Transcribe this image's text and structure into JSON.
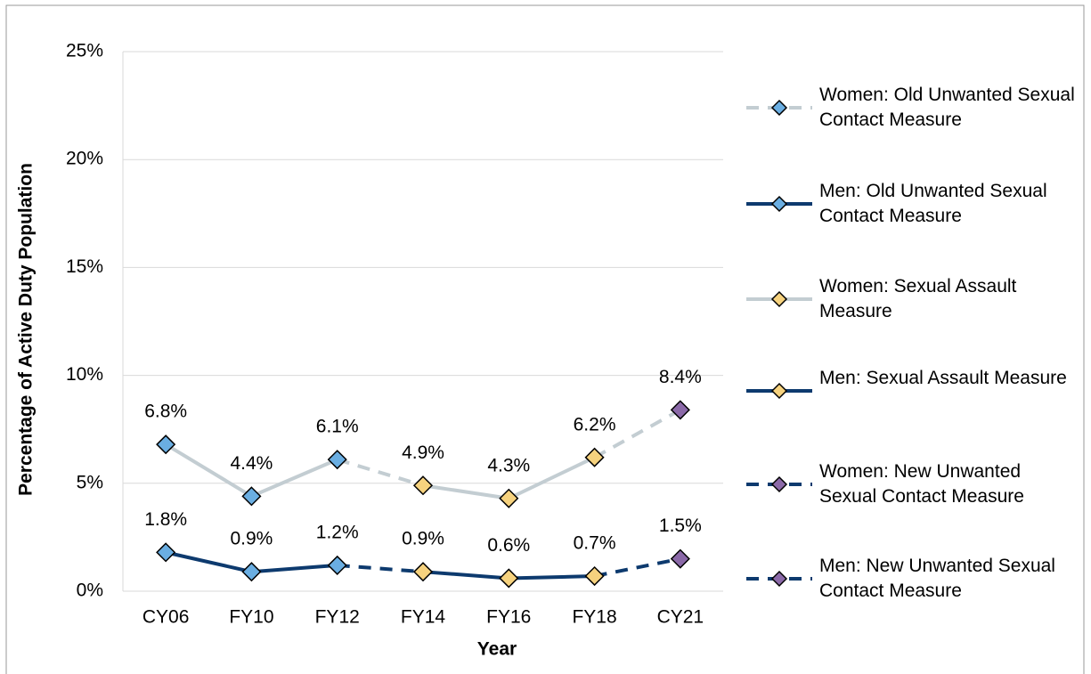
{
  "chart_data": {
    "type": "line",
    "x_label": "Year",
    "y_label": "Percentage of Active Duty Population",
    "categories": [
      "CY06",
      "FY10",
      "FY12",
      "FY14",
      "FY16",
      "FY18",
      "CY21"
    ],
    "ylim": [
      0,
      25
    ],
    "yticks": [
      {
        "value": 0,
        "label": "0%"
      },
      {
        "value": 5,
        "label": "5%"
      },
      {
        "value": 10,
        "label": "10%"
      },
      {
        "value": 15,
        "label": "15%"
      },
      {
        "value": 20,
        "label": "20%"
      },
      {
        "value": 25,
        "label": "25%"
      }
    ],
    "grid": true,
    "legend": "right",
    "series": [
      {
        "name": "Women: Old Unwanted Sexual Contact Measure",
        "color": "#c3cdd2",
        "marker_color": "#6aaee2",
        "line_style": "dashed",
        "values": [
          6.8,
          4.4,
          6.1,
          null,
          null,
          null,
          null
        ],
        "value_labels": [
          "6.8%",
          "4.4%",
          "6.1%",
          null,
          null,
          null,
          null
        ]
      },
      {
        "name": "Men: Old Unwanted Sexual Contact Measure",
        "color": "#0d3a6e",
        "marker_color": "#6aaee2",
        "line_style": "solid",
        "values": [
          1.8,
          0.9,
          1.2,
          null,
          null,
          null,
          null
        ],
        "value_labels": [
          "1.8%",
          "0.9%",
          "1.2%",
          null,
          null,
          null,
          null
        ]
      },
      {
        "name": "Women: Sexual Assault Measure",
        "color": "#c3cdd2",
        "marker_color": "#f6d27e",
        "line_style": "solid",
        "values": [
          null,
          null,
          null,
          4.9,
          4.3,
          6.2,
          null
        ],
        "value_labels": [
          null,
          null,
          null,
          "4.9%",
          "4.3%",
          "6.2%",
          null
        ]
      },
      {
        "name": "Men: Sexual Assault Measure",
        "color": "#0d3a6e",
        "marker_color": "#f6d27e",
        "line_style": "solid",
        "values": [
          null,
          null,
          null,
          0.9,
          0.6,
          0.7,
          null
        ],
        "value_labels": [
          null,
          null,
          null,
          "0.9%",
          "0.6%",
          "0.7%",
          null
        ]
      },
      {
        "name": "Women: New Unwanted Sexual Contact Measure",
        "color": "#0d3a6e",
        "marker_color": "#8b69a8",
        "line_style": "dashed",
        "values": [
          null,
          null,
          null,
          null,
          null,
          null,
          8.4
        ],
        "value_labels": [
          null,
          null,
          null,
          null,
          null,
          null,
          "8.4%"
        ]
      },
      {
        "name": "Men: New Unwanted Sexual Contact Measure",
        "color": "#0d3a6e",
        "marker_color": "#8b69a8",
        "line_style": "dashed",
        "values": [
          null,
          null,
          null,
          null,
          null,
          null,
          1.5
        ],
        "value_labels": [
          null,
          null,
          null,
          null,
          null,
          null,
          "1.5%"
        ]
      }
    ]
  }
}
